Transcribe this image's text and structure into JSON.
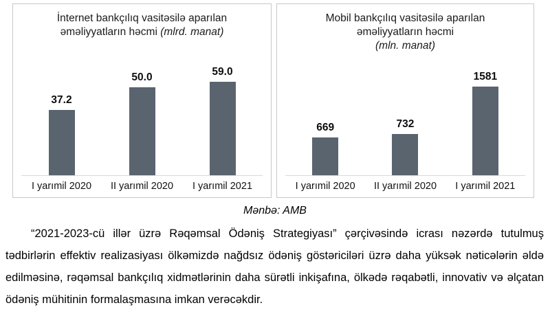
{
  "source_note": "Mənbə: AMB",
  "paragraph": "“2021-2023-cü illər üzrə Rəqəmsal Ödəniş Strategiyası” çərçivəsində icrası nəzərdə tutulmuş tədbirlərin effektiv realizasiyası ölkəmizdə nağdsız ödəniş göstəriciləri üzrə daha yüksək nəticələrin əldə edilməsinə, rəqəmsal bankçılıq xidmətlərinin daha sürətli inkişafına, ölkədə rəqabətli, innovativ və əlçatan ödəniş mühitinin formalaşmasına imkan verəcəkdir.",
  "chart_data": [
    {
      "type": "bar",
      "title_line1": "İnternet bankçılıq vasitəsilə aparılan",
      "title_line2": "əməliyyatların həcmi",
      "unit_label": "(mlrd. manat)",
      "categories": [
        "I yarımil 2020",
        "II yarımil 2020",
        "I yarımil 2021"
      ],
      "values": [
        37.2,
        50.0,
        59.0
      ],
      "value_labels": [
        "37.2",
        "50.0",
        "59.0"
      ],
      "ylim": [
        0,
        62
      ],
      "bar_color": "#5a646f",
      "grid": false,
      "legend": "none"
    },
    {
      "type": "bar",
      "title_line1": "Mobil bankçılıq vasitəsilə aparılan",
      "title_line2": "əməliyyatların həcmi",
      "unit_label": "(mln. manat)",
      "categories": [
        "I yarımil 2020",
        "II yarımil 2020",
        "I yarımil 2021"
      ],
      "values": [
        669,
        732,
        1581
      ],
      "value_labels": [
        "669",
        "732",
        "1581"
      ],
      "ylim": [
        0,
        1950
      ],
      "bar_color": "#5a646f",
      "grid": false,
      "legend": "none"
    }
  ]
}
